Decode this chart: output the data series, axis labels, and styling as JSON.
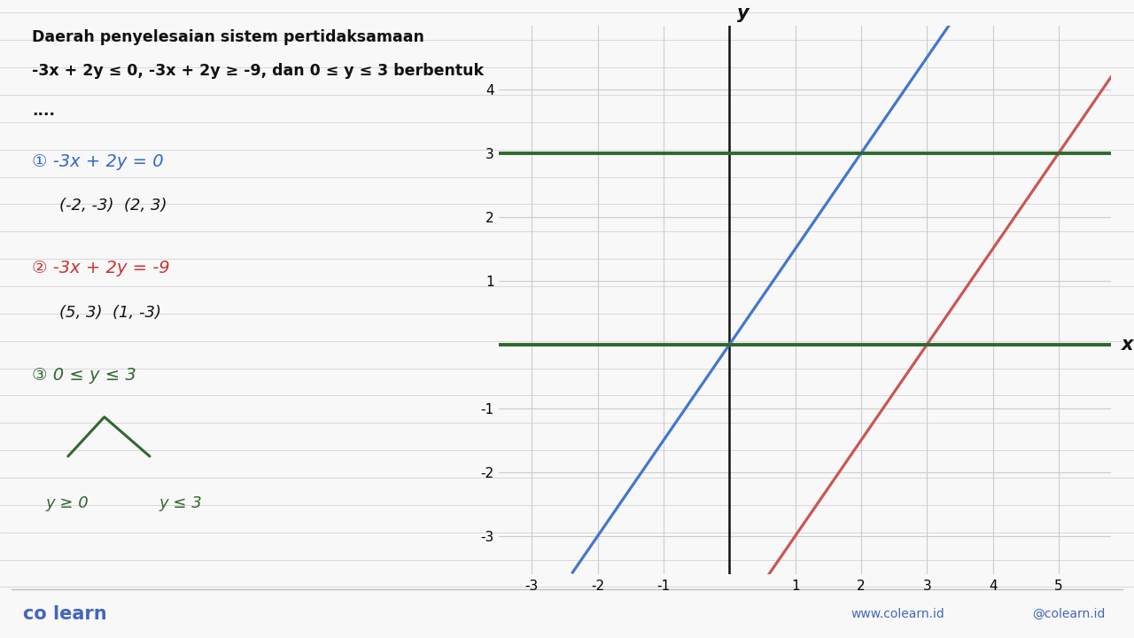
{
  "title_line1": "Daerah penyelesaian sistem pertidaksamaan",
  "title_line2": "-3x + 2y ≤ 0, -3x + 2y ≥ -9, dan 0 ≤ y ≤ 3 berbentuk",
  "title_line3": "....",
  "bg_color": "#f8f8f8",
  "ruled_line_color": "#d8d8d8",
  "eq1_label": "① -3x + 2y = 0",
  "eq1_points": "(-2, -3)  (2, 3)",
  "eq1_color": "#3366cc",
  "eq2_label": "② -3x + 2y = -9",
  "eq2_points": "(5, 3)  (1, -3)",
  "eq2_color": "#cc3333",
  "eq3_label": "③ 0 ≤ y ≤ 3",
  "eq3_color": "#336633",
  "eq3_sub1": "y ≥ 0",
  "eq3_sub2": "y ≤ 3",
  "graph_xlim": [
    -3.5,
    5.8
  ],
  "graph_ylim": [
    -3.6,
    5.0
  ],
  "graph_xticks": [
    -3,
    -2,
    -1,
    0,
    1,
    2,
    3,
    4,
    5
  ],
  "graph_yticks": [
    -3,
    -2,
    -1,
    0,
    1,
    2,
    3,
    4
  ],
  "blue_line_color": "#4477cc",
  "red_line_color": "#cc5555",
  "green_line_color": "#2d6a2d",
  "axis_color": "#111111",
  "grid_color": "#cccccc",
  "footer_left": "co learn",
  "footer_color": "#4466bb",
  "footer_right1": "www.colearn.id",
  "footer_right2": "@colearn.id"
}
